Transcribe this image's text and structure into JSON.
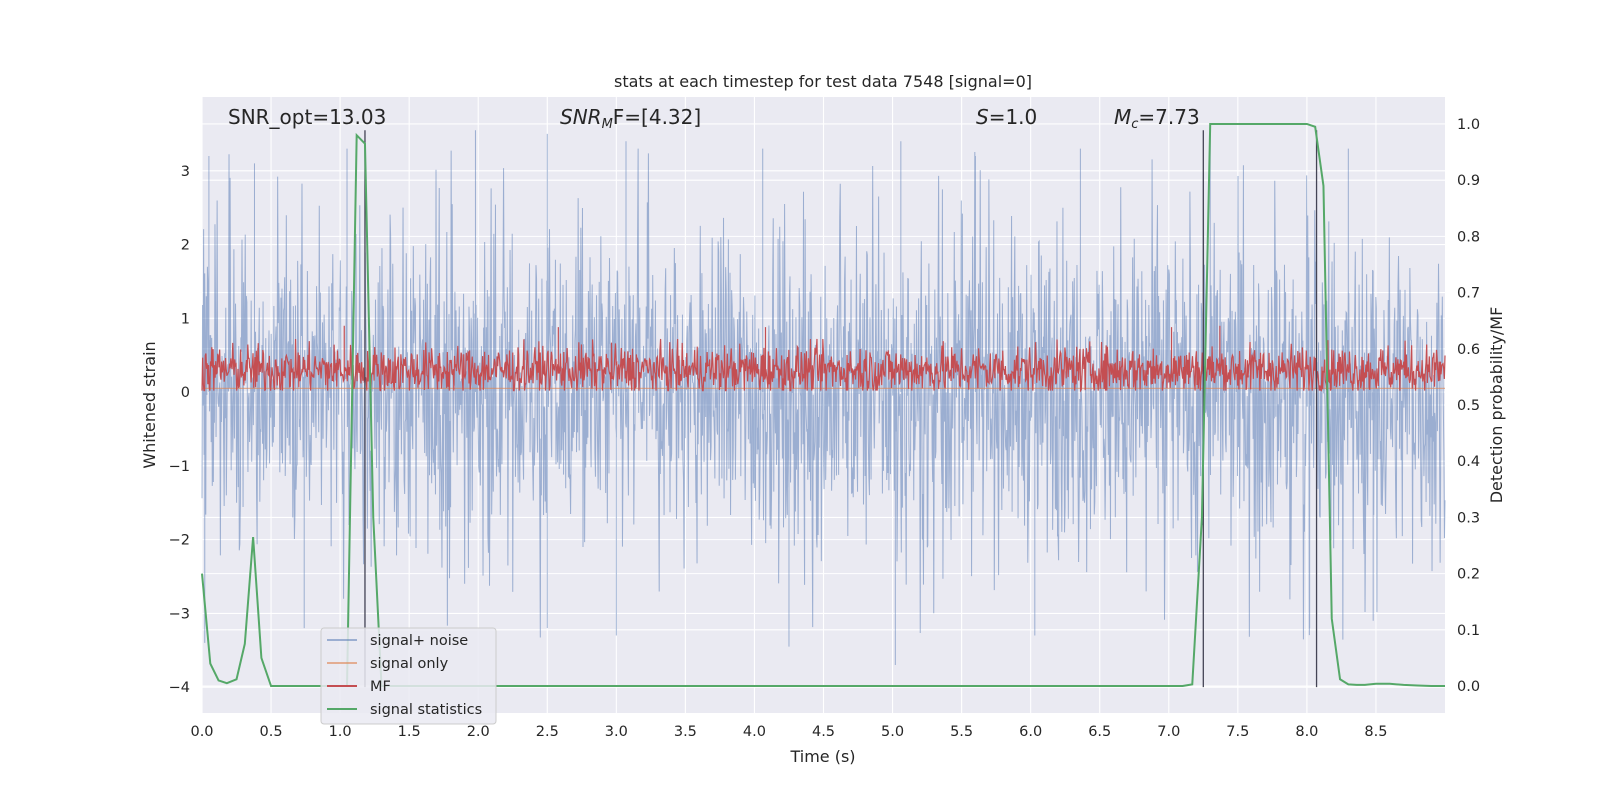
{
  "chart_data": {
    "type": "line",
    "title": "stats at each timestep for test data 7548 [signal=0]",
    "xlabel": "Time (s)",
    "ylabel": "Whitened strain",
    "y2label": "Detection probability/MF",
    "xlim": [
      0,
      9.0
    ],
    "ylim": [
      -4.35,
      4.0
    ],
    "y2lim": [
      -0.048,
      1.048
    ],
    "x_ticks": [
      0.0,
      0.5,
      1.0,
      1.5,
      2.0,
      2.5,
      3.0,
      3.5,
      4.0,
      4.5,
      5.0,
      5.5,
      6.0,
      6.5,
      7.0,
      7.5,
      8.0,
      8.5
    ],
    "x_tick_labels": [
      "0.0",
      "0.5",
      "1.0",
      "1.5",
      "2.0",
      "2.5",
      "3.0",
      "3.5",
      "4.0",
      "4.5",
      "5.0",
      "5.5",
      "6.0",
      "6.5",
      "7.0",
      "7.5",
      "8.0",
      "8.5"
    ],
    "y_ticks": [
      -4,
      -3,
      -2,
      -1,
      0,
      1,
      2,
      3
    ],
    "y_tick_labels": [
      "−4",
      "−3",
      "−2",
      "−1",
      "0",
      "1",
      "2",
      "3"
    ],
    "y2_ticks": [
      0.0,
      0.1,
      0.2,
      0.3,
      0.4,
      0.5,
      0.6,
      0.7,
      0.8,
      0.9,
      1.0
    ],
    "y2_tick_labels": [
      "0.0",
      "0.1",
      "0.2",
      "0.3",
      "0.4",
      "0.5",
      "0.6",
      "0.7",
      "0.8",
      "0.9",
      "1.0"
    ],
    "grid": true,
    "legend_position": "lower-left",
    "annotations": [
      "SNR_opt=13.03",
      "SNR",
      "M",
      "F=[4.32]",
      "S",
      "=1.0",
      "M",
      "c",
      "=7.73"
    ],
    "vertical_lines": [
      {
        "x": 1.18,
        "y_range": [
          -4.0,
          3.55
        ]
      },
      {
        "x": 7.25,
        "y_range": [
          -4.0,
          3.55
        ]
      },
      {
        "x": 8.07,
        "y_range": [
          -4.0,
          3.55
        ]
      }
    ],
    "series": [
      {
        "name": "signal+ noise",
        "color": "#4c72b0",
        "axis": "left",
        "style": "dense noise, typical envelope about ±1.8 with spikes up to about 3.6 and down to about -3.7",
        "sample_peaks": [
          [
            0.05,
            3.2
          ],
          [
            0.38,
            3.1
          ],
          [
            1.05,
            3.3
          ],
          [
            1.98,
            3.55
          ],
          [
            2.5,
            3.5
          ],
          [
            3.07,
            3.4
          ],
          [
            4.06,
            3.3
          ],
          [
            5.06,
            3.4
          ],
          [
            5.6,
            3.2
          ],
          [
            6.36,
            3.3
          ],
          [
            7.3,
            3.5
          ],
          [
            8.3,
            3.3
          ]
        ],
        "sample_troughs": [
          [
            0.02,
            -3.4
          ],
          [
            0.74,
            -3.2
          ],
          [
            2.5,
            -3.2
          ],
          [
            3.0,
            -3.3
          ],
          [
            4.25,
            -3.45
          ],
          [
            5.02,
            -3.7
          ],
          [
            6.03,
            -3.3
          ],
          [
            8.02,
            -3.2
          ],
          [
            8.48,
            -3.1
          ]
        ]
      },
      {
        "name": "signal only",
        "color": "#dd8452",
        "axis": "left",
        "x": [
          0.0,
          9.0
        ],
        "y": [
          0.05,
          0.05
        ]
      },
      {
        "name": "MF",
        "color": "#c44e52",
        "axis": "left",
        "style": "dense positive trace between about 0.05 and 0.6 with peaks near 0.9",
        "sample_peaks": [
          [
            1.03,
            0.9
          ],
          [
            2.58,
            0.88
          ],
          [
            4.08,
            0.88
          ],
          [
            7.02,
            0.88
          ],
          [
            7.37,
            0.9
          ]
        ]
      },
      {
        "name": "signal statistics",
        "color": "#55a868",
        "axis": "right",
        "x": [
          0.0,
          0.06,
          0.12,
          0.18,
          0.25,
          0.31,
          0.37,
          0.43,
          0.5,
          0.56,
          0.62,
          0.68,
          0.74,
          0.8,
          0.87,
          0.93,
          0.99,
          1.05,
          1.12,
          1.18,
          1.24,
          1.3,
          1.36,
          1.43,
          1.5,
          2.0,
          3.0,
          4.0,
          5.0,
          6.0,
          7.0,
          7.1,
          7.17,
          7.24,
          7.3,
          7.36,
          7.43,
          7.5,
          7.6,
          7.7,
          7.8,
          7.9,
          8.0,
          8.06,
          8.12,
          8.18,
          8.24,
          8.3,
          8.36,
          8.42,
          8.5,
          8.6,
          8.7,
          8.8,
          8.9,
          9.0
        ],
        "y": [
          0.2,
          0.04,
          0.01,
          0.005,
          0.012,
          0.075,
          0.265,
          0.05,
          0.0,
          0.0,
          0.0,
          0.0,
          0.0,
          0.0,
          0.0,
          0.0,
          0.0,
          0.0,
          0.98,
          0.965,
          0.3,
          0.0,
          0.0,
          0.0,
          0.0,
          0.0,
          0.0,
          0.0,
          0.0,
          0.0,
          0.0,
          0.0,
          0.003,
          0.3,
          1.0,
          1.0,
          1.0,
          1.0,
          1.0,
          1.0,
          1.0,
          1.0,
          1.0,
          0.995,
          0.89,
          0.12,
          0.012,
          0.003,
          0.002,
          0.002,
          0.004,
          0.004,
          0.002,
          0.001,
          0.0,
          0.0
        ]
      }
    ]
  }
}
